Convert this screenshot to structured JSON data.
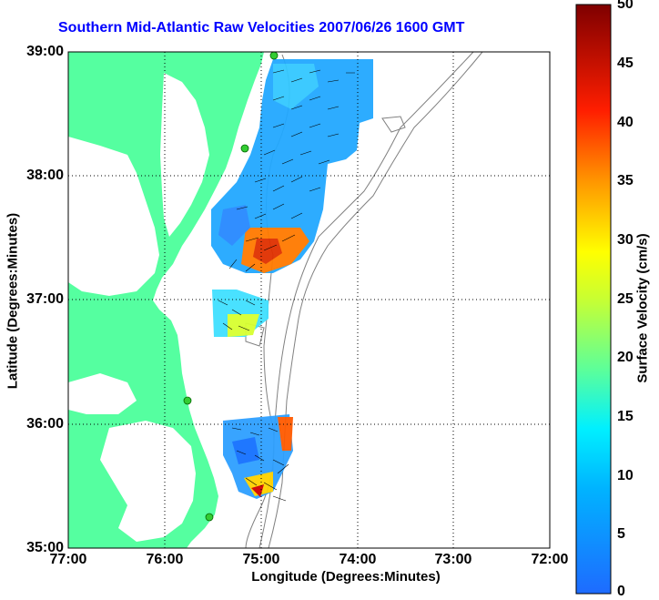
{
  "title": "Southern Mid-Atlantic Raw Velocities 2007/06/26 1600 GMT",
  "axes": {
    "xlabel": "Longitude (Degrees:Minutes)",
    "ylabel": "Latitude (Degrees:Minutes)",
    "x_ticks": [
      "77:00",
      "76:00",
      "75:00",
      "74:00",
      "73:00",
      "72:00"
    ],
    "y_ticks": [
      "39:00",
      "38:00",
      "37:00",
      "36:00",
      "35:00"
    ],
    "grid": "dotted"
  },
  "colorbar": {
    "label": "Surface Velocity (cm/s)",
    "ticks": [
      "50",
      "45",
      "40",
      "35",
      "30",
      "25",
      "20",
      "15",
      "10",
      "5",
      "0"
    ],
    "range": [
      0,
      50
    ],
    "colors": [
      "#1e6bff",
      "#00e6ff",
      "#5cff9a",
      "#ffff00",
      "#ff8c00",
      "#ff0000",
      "#7f0000"
    ]
  },
  "colors": {
    "land": "#55ffa0",
    "title": "#0000ff",
    "bathymetry": "#808080",
    "stations": "#33cc33"
  },
  "map": {
    "lon_range": [
      -77,
      -72
    ],
    "lat_range": [
      35,
      39
    ],
    "stations": [
      {
        "lon": -74.87,
        "lat": 38.95
      },
      {
        "lon": -75.15,
        "lat": 38.22
      },
      {
        "lon": -75.71,
        "lat": 36.18
      },
      {
        "lon": -75.52,
        "lat": 35.26
      }
    ]
  }
}
